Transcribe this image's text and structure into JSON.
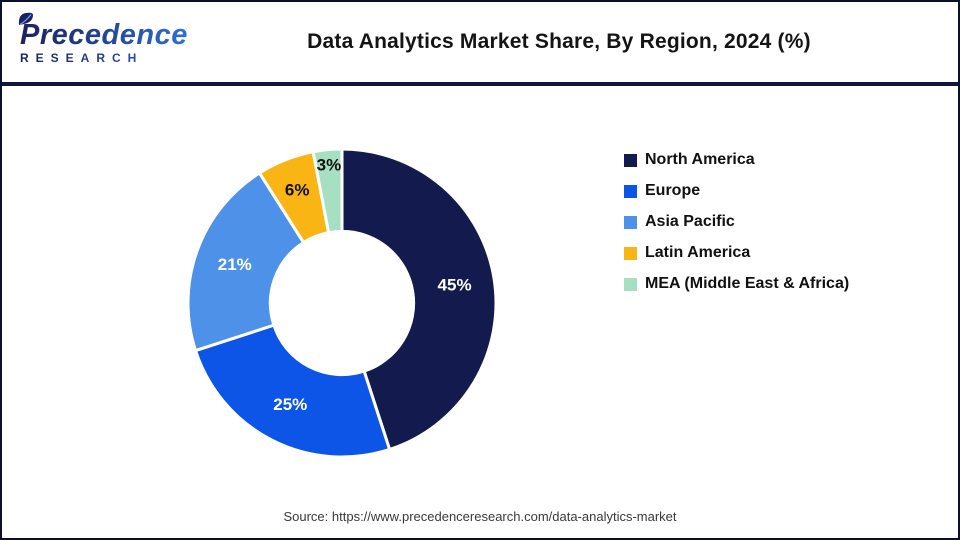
{
  "header": {
    "title": "Data Analytics Market Share, By Region, 2024 (%)"
  },
  "brand": {
    "name": "Precedence",
    "tagline": "RESEARCH"
  },
  "footer": {
    "source": "Source: https://www.precedenceresearch.com/data-analytics-market"
  },
  "chart_data": {
    "type": "pie",
    "variant": "donut",
    "title": "Data Analytics Market Share, By Region, 2024 (%)",
    "categories": [
      "North America",
      "Europe",
      "Asia Pacific",
      "Latin America",
      "MEA (Middle East & Africa)"
    ],
    "values": [
      45,
      25,
      21,
      6,
      3
    ],
    "value_labels": [
      "45%",
      "25%",
      "21%",
      "6%",
      "3%"
    ],
    "colors": [
      "#131b4e",
      "#0d55e6",
      "#4d92e8",
      "#f9b513",
      "#a6dfc2"
    ],
    "label_text_colors": [
      "#ffffff",
      "#ffffff",
      "#ffffff",
      "#111111",
      "#111111"
    ],
    "hole_ratio": 0.465,
    "start_angle_deg": 0,
    "direction": "clockwise",
    "legend_position": "right",
    "slice_gap_color": "#ffffff"
  }
}
